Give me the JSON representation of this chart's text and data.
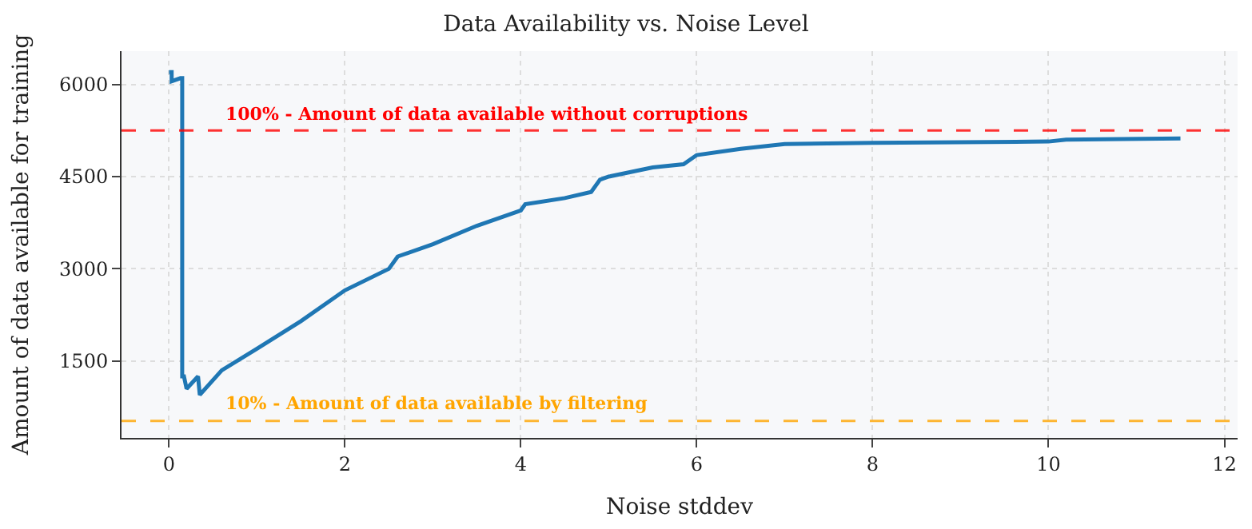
{
  "chart_data": {
    "type": "line",
    "title": "Data Availability vs. Noise Level",
    "xlabel": "Noise stddev",
    "ylabel": "Amount of data available for training",
    "xlim": [
      -0.54,
      12.15
    ],
    "xticks": [
      0,
      2,
      4,
      6,
      8,
      10,
      12
    ],
    "ylim": [
      250,
      6540
    ],
    "yticks": [
      1500,
      3000,
      4500,
      6000
    ],
    "grid": true,
    "line_style": "solid",
    "marker": "none",
    "series": [
      {
        "color": "#1f77b4",
        "x": [
          0,
          0.03,
          0.03,
          0.13,
          0.15,
          0.15,
          0.17,
          0.2,
          0.33,
          0.35,
          0.6,
          1.0,
          1.5,
          2.0,
          2.5,
          2.6,
          3.0,
          3.5,
          4.0,
          4.05,
          4.5,
          4.8,
          4.9,
          5.0,
          5.5,
          5.85,
          6.0,
          6.5,
          7.0,
          8.0,
          10.0,
          10.2,
          11.5
        ],
        "values": [
          6200,
          6200,
          6050,
          6100,
          6100,
          1250,
          1250,
          1050,
          1250,
          950,
          1350,
          1700,
          2150,
          2650,
          3000,
          3200,
          3400,
          3700,
          3950,
          4050,
          4150,
          4250,
          4450,
          4500,
          4650,
          4700,
          4850,
          4950,
          5030,
          5050,
          5070,
          5100,
          5120
        ]
      }
    ],
    "ref_lines": [
      {
        "axis": "y",
        "value": 5250,
        "label": "100% - Amount of data available without corruptions",
        "color": "#ff0000",
        "line_style": "dashed"
      },
      {
        "axis": "y",
        "value": 525,
        "label": "10% - Amount of data available by filtering",
        "color": "#ffa500",
        "line_style": "dashed"
      }
    ]
  }
}
